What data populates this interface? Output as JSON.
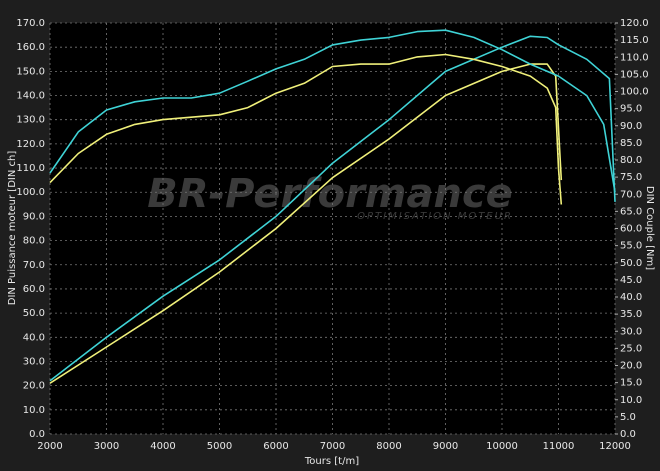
{
  "chart_data": {
    "type": "line",
    "watermark": "BR-Performance",
    "watermark_subtitle": "OPTIMISATION MOTEUR",
    "xlabel": "Tours [t/m]",
    "ylabel": "DIN Puissance moteur [DIN ch]",
    "y2label": "DIN Couple [Nm]",
    "xlim": [
      2000,
      12000
    ],
    "xticks": [
      2000,
      3000,
      4000,
      5000,
      6000,
      7000,
      8000,
      9000,
      10000,
      11000,
      12000
    ],
    "ylim": [
      0,
      170
    ],
    "yticks": [
      {
        "value": 0,
        "label": "0.0"
      },
      {
        "value": 10,
        "label": "10.0"
      },
      {
        "value": 20,
        "label": "20.0"
      },
      {
        "value": 30,
        "label": "30.0"
      },
      {
        "value": 40,
        "label": "40.0"
      },
      {
        "value": 50,
        "label": "50.0"
      },
      {
        "value": 60,
        "label": "60.0"
      },
      {
        "value": 70,
        "label": "70.0"
      },
      {
        "value": 80,
        "label": "80.0"
      },
      {
        "value": 90,
        "label": "90.0"
      },
      {
        "value": 100,
        "label": "100.0"
      },
      {
        "value": 110,
        "label": "110.0"
      },
      {
        "value": 120,
        "label": "120.0"
      },
      {
        "value": 130,
        "label": "130.0"
      },
      {
        "value": 140,
        "label": "140.0"
      },
      {
        "value": 150,
        "label": "150.0"
      },
      {
        "value": 160,
        "label": "160.0"
      },
      {
        "value": 170,
        "label": "170.0"
      }
    ],
    "y2lim": [
      0,
      120
    ],
    "y2ticks": [
      {
        "value": 0,
        "label": "0.0"
      },
      {
        "value": 5,
        "label": "5.0"
      },
      {
        "value": 10,
        "label": "10.0"
      },
      {
        "value": 15,
        "label": "15.0"
      },
      {
        "value": 20,
        "label": "20.0"
      },
      {
        "value": 25,
        "label": "25.0"
      },
      {
        "value": 30,
        "label": "30.0"
      },
      {
        "value": 35,
        "label": "35.0"
      },
      {
        "value": 40,
        "label": "40.0"
      },
      {
        "value": 45,
        "label": "45.0"
      },
      {
        "value": 50,
        "label": "50.0"
      },
      {
        "value": 55,
        "label": "55.0"
      },
      {
        "value": 60,
        "label": "60.0"
      },
      {
        "value": 65,
        "label": "65.0"
      },
      {
        "value": 70,
        "label": "70.0"
      },
      {
        "value": 75,
        "label": "75.0"
      },
      {
        "value": 80,
        "label": "80.0"
      },
      {
        "value": 85,
        "label": "85.0"
      },
      {
        "value": 90,
        "label": "90.0"
      },
      {
        "value": 95,
        "label": "95.0"
      },
      {
        "value": 100,
        "label": "100.0"
      },
      {
        "value": 105,
        "label": "105.0"
      },
      {
        "value": 110,
        "label": "110.0"
      },
      {
        "value": 115,
        "label": "115.0"
      },
      {
        "value": 120,
        "label": "120.0"
      }
    ],
    "grid": true,
    "series": [
      {
        "color": "#3fd3d6",
        "x": [
          2000,
          3000,
          4000,
          5000,
          6000,
          7000,
          8000,
          9000,
          10000,
          10500,
          10800,
          11000,
          11500,
          11900,
          12000
        ],
        "values": [
          22,
          40,
          57,
          72,
          90,
          112,
          130,
          150,
          160,
          164.5,
          164,
          161,
          155,
          147,
          96
        ]
      },
      {
        "color": "#f0f07a",
        "x": [
          2000,
          3000,
          4000,
          5000,
          6000,
          7000,
          8000,
          9000,
          10000,
          10500,
          10800,
          10950,
          11050
        ],
        "values": [
          21,
          36,
          51,
          67,
          85,
          106,
          122,
          140,
          150,
          153,
          153,
          148,
          105
        ]
      },
      {
        "color": "#3fd3d6",
        "axis": "y2",
        "x": [
          2000,
          2500,
          3000,
          3500,
          4000,
          4500,
          5000,
          5500,
          6000,
          6500,
          7000,
          7500,
          8000,
          8500,
          9000,
          9500,
          10000,
          10500,
          11000,
          11500,
          11800,
          12000
        ],
        "values": [
          76.2,
          88.2,
          94.6,
          97,
          98.1,
          98.1,
          99.5,
          103,
          106.6,
          109.4,
          113.6,
          115,
          115.8,
          117.5,
          117.9,
          115.8,
          112.2,
          108,
          104.5,
          98.8,
          90.4,
          70.6
        ]
      },
      {
        "color": "#f0f07a",
        "axis": "y2",
        "x": [
          2000,
          2500,
          3000,
          3500,
          4000,
          4500,
          5000,
          5500,
          6000,
          6500,
          7000,
          7500,
          8000,
          8500,
          9000,
          9500,
          10000,
          10500,
          10800,
          10950,
          11000,
          11050
        ],
        "values": [
          73.4,
          81.9,
          87.5,
          90.4,
          91.8,
          92.5,
          93.2,
          95.3,
          99.5,
          102.4,
          107.3,
          108,
          108,
          110.1,
          110.8,
          109.4,
          107.3,
          104.5,
          101,
          95.3,
          77.6,
          67
        ]
      }
    ]
  }
}
